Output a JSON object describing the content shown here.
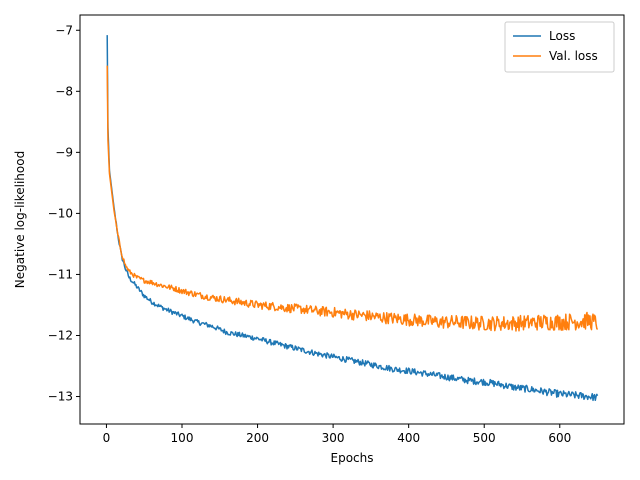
{
  "chart_data": {
    "type": "line",
    "title": "",
    "xlabel": "Epochs",
    "ylabel": "Negative log-likelihood",
    "xlim": [
      -35,
      685
    ],
    "ylim": [
      -13.45,
      -6.75
    ],
    "xticks": [
      0,
      100,
      200,
      300,
      400,
      500,
      600
    ],
    "xtick_labels": [
      "0",
      "100",
      "200",
      "300",
      "400",
      "500",
      "600"
    ],
    "yticks": [
      -7,
      -8,
      -9,
      -10,
      -11,
      -12,
      -13
    ],
    "ytick_labels": [
      "−7",
      "−8",
      "−9",
      "−10",
      "−11",
      "−12",
      "−13"
    ],
    "grid": false,
    "legend": {
      "position": "top-right"
    },
    "series": [
      {
        "name": "Loss",
        "color": "#1f77b4",
        "x": [
          1,
          2,
          4,
          6,
          8,
          10,
          15,
          20,
          25,
          30,
          40,
          50,
          60,
          70,
          80,
          90,
          100,
          120,
          140,
          160,
          180,
          200,
          220,
          240,
          260,
          280,
          300,
          320,
          340,
          360,
          380,
          400,
          420,
          440,
          460,
          480,
          500,
          520,
          540,
          560,
          580,
          600,
          620,
          640,
          650
        ],
        "y": [
          -7.08,
          -8.6,
          -9.3,
          -9.5,
          -9.7,
          -9.9,
          -10.35,
          -10.7,
          -10.9,
          -11.05,
          -11.2,
          -11.35,
          -11.45,
          -11.52,
          -11.58,
          -11.63,
          -11.68,
          -11.78,
          -11.85,
          -11.95,
          -12.0,
          -12.05,
          -12.12,
          -12.18,
          -12.24,
          -12.3,
          -12.35,
          -12.4,
          -12.45,
          -12.5,
          -12.55,
          -12.58,
          -12.62,
          -12.66,
          -12.7,
          -12.74,
          -12.76,
          -12.8,
          -12.85,
          -12.88,
          -12.92,
          -12.96,
          -12.98,
          -13.0,
          -13.02
        ]
      },
      {
        "name": "Val. loss",
        "color": "#ff7f0e",
        "x": [
          1,
          2,
          4,
          6,
          8,
          10,
          15,
          20,
          25,
          30,
          40,
          50,
          60,
          70,
          80,
          90,
          100,
          120,
          140,
          160,
          180,
          200,
          220,
          240,
          260,
          280,
          300,
          320,
          340,
          360,
          380,
          400,
          420,
          440,
          460,
          480,
          500,
          520,
          540,
          560,
          580,
          600,
          620,
          640,
          650
        ],
        "y": [
          -7.58,
          -8.8,
          -9.35,
          -9.55,
          -9.75,
          -9.95,
          -10.35,
          -10.65,
          -10.85,
          -10.95,
          -11.05,
          -11.1,
          -11.13,
          -11.17,
          -11.2,
          -11.23,
          -11.27,
          -11.33,
          -11.38,
          -11.42,
          -11.46,
          -11.5,
          -11.52,
          -11.55,
          -11.57,
          -11.6,
          -11.62,
          -11.65,
          -11.67,
          -11.7,
          -11.72,
          -11.74,
          -11.76,
          -11.78,
          -11.78,
          -11.79,
          -11.8,
          -11.8,
          -11.8,
          -11.79,
          -11.78,
          -11.78,
          -11.77,
          -11.76,
          -11.8
        ]
      }
    ]
  }
}
